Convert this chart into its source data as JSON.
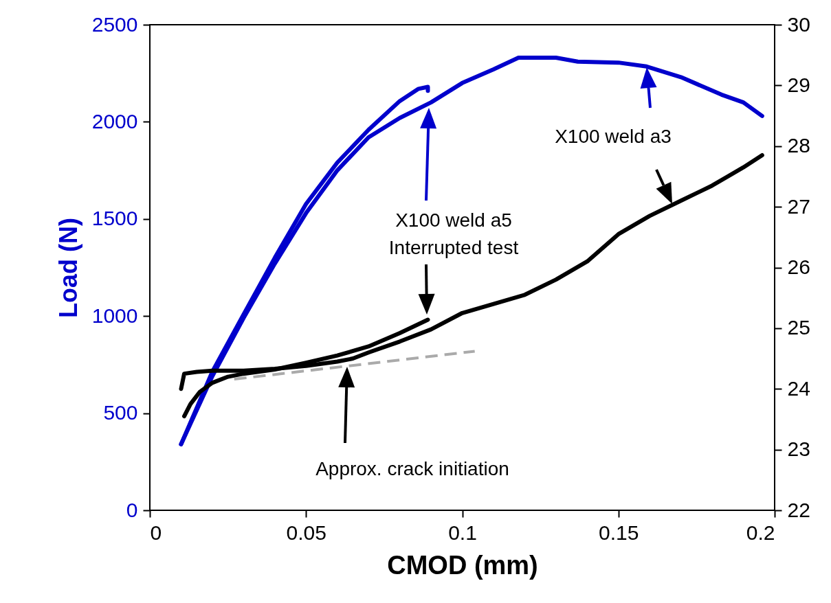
{
  "chart_data": {
    "type": "line",
    "xlabel": "CMOD (mm)",
    "ylabel": "Load (N)",
    "xlim": [
      0,
      0.2
    ],
    "xticks": [
      0,
      0.05,
      0.1,
      0.15,
      0.2
    ],
    "ylim": [
      0,
      2500
    ],
    "yticks": [
      0,
      500,
      1000,
      1500,
      2000,
      2500
    ],
    "y2lim": [
      22,
      30
    ],
    "y2ticks": [
      22,
      23,
      24,
      25,
      26,
      27,
      28,
      29,
      30
    ],
    "series": [
      {
        "color": "#0000cc",
        "x": [
          0.01,
          0.02,
          0.03,
          0.04,
          0.05,
          0.06,
          0.07,
          0.08,
          0.086,
          0.089,
          0.089
        ],
        "values": [
          340,
          714,
          1008,
          1300,
          1577,
          1790,
          1959,
          2107,
          2170,
          2180,
          2160
        ]
      },
      {
        "color": "#0000cc",
        "x": [
          0.01,
          0.02,
          0.03,
          0.04,
          0.05,
          0.06,
          0.07,
          0.08,
          0.09,
          0.1,
          0.11,
          0.118,
          0.13,
          0.137,
          0.15,
          0.159,
          0.17,
          0.183,
          0.19,
          0.196
        ],
        "values": [
          340,
          690,
          990,
          1270,
          1530,
          1750,
          1920,
          2020,
          2100,
          2200,
          2270,
          2330,
          2330,
          2310,
          2305,
          2285,
          2230,
          2140,
          2100,
          2030
        ]
      },
      {
        "color": "#000000",
        "axis": "y2",
        "x": [
          0.011,
          0.013,
          0.016,
          0.02,
          0.025,
          0.03,
          0.04,
          0.05,
          0.06,
          0.07,
          0.08,
          0.089
        ],
        "values": [
          23.55,
          23.75,
          23.95,
          24.1,
          24.2,
          24.25,
          24.32,
          24.43,
          24.55,
          24.7,
          24.92,
          25.14
        ]
      },
      {
        "color": "#000000",
        "axis": "y2",
        "x": [
          0.01,
          0.011,
          0.015,
          0.02,
          0.03,
          0.04,
          0.05,
          0.06,
          0.065,
          0.07,
          0.08,
          0.09,
          0.1,
          0.11,
          0.12,
          0.13,
          0.14,
          0.15,
          0.16,
          0.17,
          0.18,
          0.19,
          0.196
        ],
        "values": [
          24.0,
          24.25,
          24.28,
          24.3,
          24.3,
          24.33,
          24.38,
          24.45,
          24.5,
          24.6,
          24.78,
          24.98,
          25.25,
          25.4,
          25.55,
          25.8,
          26.1,
          26.55,
          26.85,
          27.1,
          27.35,
          27.65,
          27.85
        ]
      },
      {
        "color": "#aaaaaa",
        "axis": "y2",
        "line_style": "dashed",
        "x": [
          0.027,
          0.104
        ],
        "values": [
          24.16,
          24.62
        ]
      }
    ],
    "annotations": [
      "X100 weld a5\nInterrupted test",
      "X100 weld a3",
      "Approx. crack initiation"
    ]
  }
}
